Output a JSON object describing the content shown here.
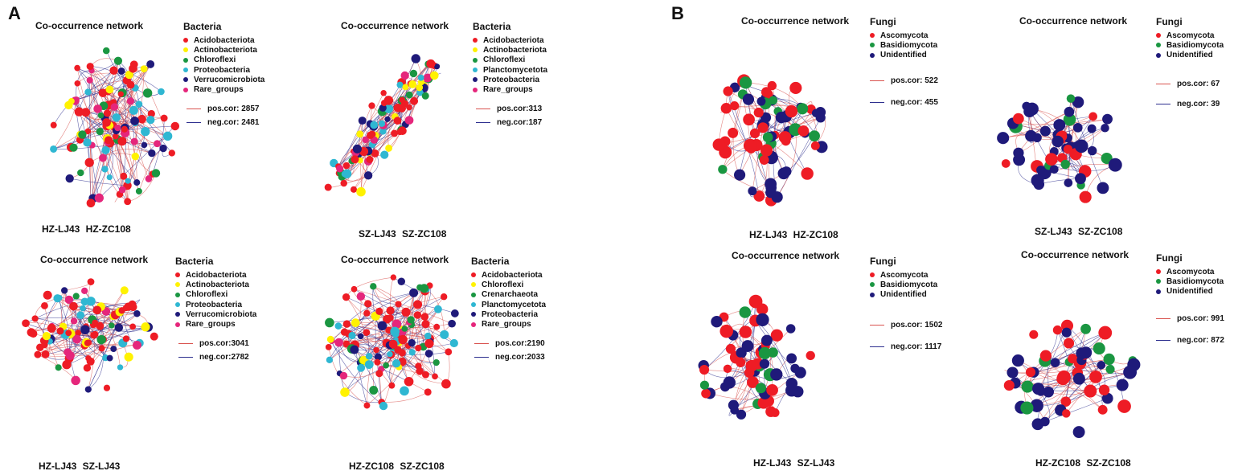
{
  "panels": [
    {
      "letter": "A"
    },
    {
      "letter": "B"
    }
  ],
  "colors": {
    "pos_edge": "#d9534f",
    "neg_edge": "#2d2f8f"
  },
  "networks": [
    {
      "title": "Co-occurrence network",
      "caption": "HZ-LJ43   HZ-ZC108",
      "legend_title": "Bacteria",
      "taxa": [
        {
          "name": "Acidobacteriota",
          "color": "#ee1c25"
        },
        {
          "name": "Actinobacteriota",
          "color": "#fff200"
        },
        {
          "name": "Chloroflexi",
          "color": "#1a9641"
        },
        {
          "name": "Proteobacteria",
          "color": "#2fb7d2"
        },
        {
          "name": "Verrucomicrobiota",
          "color": "#1f1a7a"
        },
        {
          "name": "Rare_groups",
          "color": "#e5267b"
        }
      ],
      "pos_text": "pos.cor:  2857",
      "neg_text": "neg.cor:  2481"
    },
    {
      "title": "Co-occurrence network",
      "caption": "SZ-LJ43   SZ-ZC108",
      "legend_title": "Bacteria",
      "taxa": [
        {
          "name": "Acidobacteriota",
          "color": "#ee1c25"
        },
        {
          "name": "Actinobacteriota",
          "color": "#fff200"
        },
        {
          "name": "Chloroflexi",
          "color": "#1a9641"
        },
        {
          "name": "Planctomycetota",
          "color": "#2fb7d2"
        },
        {
          "name": "Proteobacteria",
          "color": "#1f1a7a"
        },
        {
          "name": "Rare_groups",
          "color": "#e5267b"
        }
      ],
      "pos_text": "pos.cor:313",
      "neg_text": "neg.cor:187"
    },
    {
      "title": "Co-occurrence network",
      "caption": "HZ-LJ43   SZ-LJ43",
      "legend_title": "Bacteria",
      "taxa": [
        {
          "name": "Acidobacteriota",
          "color": "#ee1c25"
        },
        {
          "name": "Actinobacteriota",
          "color": "#fff200"
        },
        {
          "name": "Chloroflexi",
          "color": "#1a9641"
        },
        {
          "name": "Proteobacteria",
          "color": "#2fb7d2"
        },
        {
          "name": "Verrucomicrobiota",
          "color": "#1f1a7a"
        },
        {
          "name": "Rare_groups",
          "color": "#e5267b"
        }
      ],
      "pos_text": "pos.cor:3041",
      "neg_text": "neg.cor:2782"
    },
    {
      "title": "Co-occurrence network",
      "caption": "HZ-ZC108   SZ-ZC108",
      "legend_title": "Bacteria",
      "taxa": [
        {
          "name": "Acidobacteriota",
          "color": "#ee1c25"
        },
        {
          "name": "Chloroflexi",
          "color": "#fff200"
        },
        {
          "name": "Crenarchaeota",
          "color": "#1a9641"
        },
        {
          "name": "Planctomycetota",
          "color": "#2fb7d2"
        },
        {
          "name": "Proteobacteria",
          "color": "#1f1a7a"
        },
        {
          "name": "Rare_groups",
          "color": "#e5267b"
        }
      ],
      "pos_text": "pos.cor:2190",
      "neg_text": "neg.cor:2033"
    },
    {
      "title": "Co-occurrence network",
      "caption": "HZ-LJ43   HZ-ZC108",
      "legend_title": "Fungi",
      "taxa": [
        {
          "name": "Ascomycota",
          "color": "#ee1c25"
        },
        {
          "name": "Basidiomycota",
          "color": "#1a9641"
        },
        {
          "name": "Unidentified",
          "color": "#1f1a7a"
        }
      ],
      "pos_text": "pos.cor:  522",
      "neg_text": "neg.cor:  455"
    },
    {
      "title": "Co-occurrence network",
      "caption": "SZ-LJ43   SZ-ZC108",
      "legend_title": "Fungi",
      "taxa": [
        {
          "name": "Ascomycota",
          "color": "#ee1c25"
        },
        {
          "name": "Basidiomycota",
          "color": "#1a9641"
        },
        {
          "name": "Unidentified",
          "color": "#1f1a7a"
        }
      ],
      "pos_text": "pos.cor:  67",
      "neg_text": "neg.cor:  39"
    },
    {
      "title": "Co-occurrence network",
      "caption": "HZ-LJ43   SZ-LJ43",
      "legend_title": "Fungi",
      "taxa": [
        {
          "name": "Ascomycota",
          "color": "#ee1c25"
        },
        {
          "name": "Basidiomycota",
          "color": "#1a9641"
        },
        {
          "name": "Unidentified",
          "color": "#1f1a7a"
        }
      ],
      "pos_text": "pos.cor:  1502",
      "neg_text": "neg.cor:  1117"
    },
    {
      "title": "Co-occurrence network",
      "caption": "HZ-ZC108   SZ-ZC108",
      "legend_title": "Fungi",
      "taxa": [
        {
          "name": "Ascomycota",
          "color": "#ee1c25"
        },
        {
          "name": "Basidiomycota",
          "color": "#1a9641"
        },
        {
          "name": "Unidentified",
          "color": "#1f1a7a"
        }
      ],
      "pos_text": "pos.cor:  991",
      "neg_text": "neg.cor:  872"
    }
  ]
}
